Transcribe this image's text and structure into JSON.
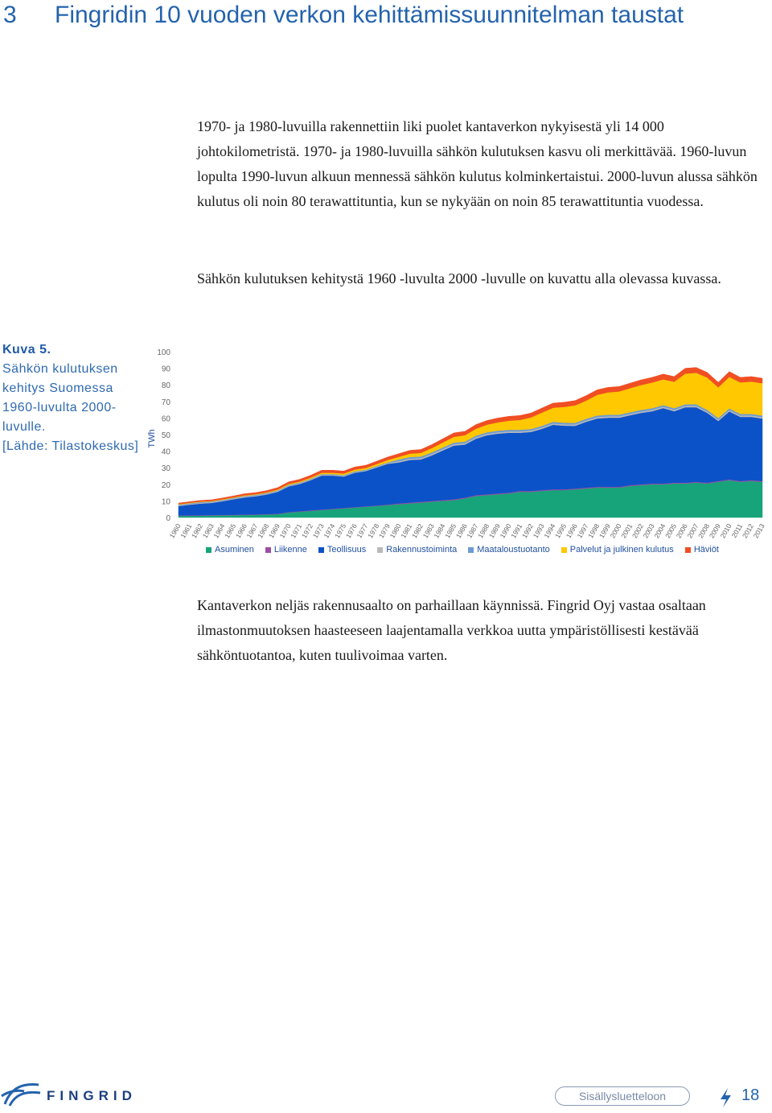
{
  "header": {
    "section": "3",
    "title": "Fingridin 10 vuoden verkon kehittämissuunnitelman taustat"
  },
  "paragraphs": [
    "1970- ja 1980-luvuilla rakennettiin liki puolet kantaverkon nykyisestä yli 14 000 johtokilometristä. 1970- ja 1980-luvuilla sähkön kulutuksen kasvu oli merkittävää. 1960-luvun lopulta 1990-luvun alkuun mennessä sähkön kulutus kolminkertaistui. 2000-luvun alussa sähkön kulutus oli noin 80 terawattituntia, kun se nykyään on noin 85 terawattituntia vuodessa.",
    "Sähkön kulutuksen kehitystä 1960 -luvulta 2000 -luvulle on kuvattu alla olevassa kuvassa.",
    "Kantaverkon neljäs rakennusaalto on parhaillaan käynnissä. Fingrid Oyj vastaa osaltaan ilmastonmuutoksen haasteeseen laajentamalla verkkoa uutta ympäristöllisesti kestävää sähköntuotantoa, kuten tuulivoimaa varten."
  ],
  "figure": {
    "label": "Kuva 5.",
    "caption": "Sähkön kulutuksen kehitys Suomessa 1960-luvulta 2000-luvulle.",
    "source": "[Lähde: Tilastokeskus]"
  },
  "chart_data": {
    "type": "area",
    "stacked": true,
    "ylabel": "TWh",
    "x": [
      1960,
      1961,
      1962,
      1963,
      1964,
      1965,
      1966,
      1967,
      1968,
      1969,
      1970,
      1971,
      1972,
      1973,
      1974,
      1975,
      1976,
      1977,
      1978,
      1979,
      1980,
      1981,
      1982,
      1983,
      1984,
      1985,
      1986,
      1987,
      1988,
      1989,
      1990,
      1991,
      1992,
      1993,
      1994,
      1995,
      1996,
      1997,
      1998,
      1999,
      2000,
      2001,
      2002,
      2003,
      2004,
      2005,
      2006,
      2007,
      2008,
      2009,
      2010,
      2011,
      2012,
      2013
    ],
    "xlim": [
      1960,
      2013
    ],
    "ylim": [
      0,
      100
    ],
    "yticks": [
      0,
      10,
      20,
      30,
      40,
      50,
      60,
      70,
      80,
      90,
      100
    ],
    "grid": false,
    "series": [
      {
        "name": "Asuminen",
        "color": "#17a47b",
        "values": [
          1.0,
          1.0,
          1.1,
          1.2,
          1.3,
          1.4,
          1.5,
          1.6,
          1.8,
          2.0,
          3.0,
          3.5,
          4.0,
          4.5,
          5.0,
          5.5,
          6.0,
          6.5,
          7.0,
          7.5,
          8.0,
          8.5,
          9.0,
          9.5,
          10.0,
          10.5,
          11.5,
          13.0,
          13.5,
          14.0,
          14.5,
          15.5,
          15.5,
          16.0,
          16.5,
          16.5,
          17.0,
          17.5,
          18.0,
          18.0,
          18.0,
          19.0,
          19.5,
          20.0,
          20.0,
          20.5,
          20.5,
          21.0,
          20.5,
          21.5,
          22.5,
          21.5,
          22.0,
          21.5
        ]
      },
      {
        "name": "Liikenne",
        "color": "#9b4fa0",
        "values": [
          0.3,
          0.3,
          0.3,
          0.3,
          0.3,
          0.3,
          0.3,
          0.3,
          0.3,
          0.3,
          0.3,
          0.3,
          0.3,
          0.3,
          0.3,
          0.3,
          0.3,
          0.3,
          0.3,
          0.3,
          0.5,
          0.5,
          0.5,
          0.5,
          0.5,
          0.5,
          0.5,
          0.5,
          0.5,
          0.5,
          0.5,
          0.5,
          0.5,
          0.5,
          0.5,
          0.5,
          0.5,
          0.5,
          0.5,
          0.5,
          0.5,
          0.5,
          0.5,
          0.5,
          0.5,
          0.5,
          0.5,
          0.5,
          0.5,
          0.5,
          0.5,
          0.5,
          0.5,
          0.5
        ]
      },
      {
        "name": "Teollisuus",
        "color": "#0b52c9",
        "values": [
          5.6,
          6.4,
          7.0,
          7.3,
          8.2,
          9.3,
          10.3,
          10.9,
          11.8,
          13.2,
          15.5,
          16.4,
          18.2,
          20.5,
          20.0,
          18.9,
          20.7,
          21.2,
          22.9,
          24.6,
          24.7,
          25.7,
          25.5,
          27.5,
          30.0,
          32.4,
          32.0,
          34.0,
          35.6,
          36.1,
          36.1,
          35.1,
          35.6,
          37.0,
          38.9,
          38.4,
          37.8,
          39.7,
          41.2,
          41.7,
          41.7,
          42.2,
          43.1,
          43.6,
          45.5,
          43.1,
          45.5,
          45.0,
          42.1,
          36.2,
          41.0,
          38.7,
          38.2,
          37.7
        ]
      },
      {
        "name": "Rakennustoiminta",
        "color": "#b9b9b9",
        "values": [
          0.5,
          0.5,
          0.5,
          0.5,
          0.5,
          0.5,
          0.5,
          0.5,
          0.5,
          0.5,
          0.5,
          0.5,
          0.5,
          0.5,
          0.5,
          0.5,
          0.5,
          0.5,
          0.5,
          0.5,
          0.8,
          0.8,
          0.8,
          0.8,
          0.8,
          0.8,
          0.8,
          0.8,
          0.8,
          0.8,
          0.8,
          0.8,
          0.8,
          0.8,
          0.8,
          0.8,
          0.8,
          0.8,
          0.8,
          0.8,
          0.8,
          0.8,
          0.8,
          0.8,
          0.8,
          0.8,
          0.8,
          0.8,
          0.8,
          0.8,
          0.8,
          0.8,
          0.8,
          0.8
        ]
      },
      {
        "name": "Maataloustuotanto",
        "color": "#6d9bd3",
        "values": [
          0.4,
          0.4,
          0.4,
          0.4,
          0.4,
          0.4,
          0.4,
          0.4,
          0.4,
          0.4,
          0.4,
          0.4,
          0.4,
          0.4,
          0.4,
          0.4,
          0.4,
          0.4,
          0.4,
          0.4,
          1.0,
          1.0,
          1.0,
          1.0,
          1.0,
          1.0,
          1.0,
          1.0,
          1.0,
          1.0,
          1.0,
          1.0,
          1.0,
          1.0,
          1.0,
          1.0,
          1.0,
          1.0,
          1.0,
          1.0,
          1.0,
          1.0,
          1.0,
          1.0,
          1.0,
          1.0,
          1.0,
          1.0,
          1.0,
          1.0,
          1.0,
          1.0,
          1.0,
          1.0
        ]
      },
      {
        "name": "Palvelut ja julkinen kulutus",
        "color": "#ffc800",
        "values": [
          0.3,
          0.3,
          0.3,
          0.3,
          0.3,
          0.3,
          0.4,
          0.4,
          0.4,
          0.5,
          0.6,
          0.6,
          0.7,
          0.8,
          0.8,
          0.9,
          1.0,
          1.0,
          1.2,
          1.4,
          1.6,
          2.0,
          2.2,
          2.6,
          3.0,
          3.5,
          3.8,
          4.2,
          4.6,
          5.0,
          5.5,
          6.0,
          7.0,
          8.0,
          8.5,
          9.5,
          10.5,
          11.0,
          12.5,
          13.5,
          14.0,
          14.5,
          15.0,
          15.5,
          15.5,
          16.0,
          18.5,
          19.0,
          19.5,
          18.5,
          19.0,
          19.0,
          19.5,
          19.5
        ]
      },
      {
        "name": "Häviöt",
        "color": "#f04e23",
        "values": [
          0.6,
          0.6,
          0.7,
          0.7,
          0.8,
          0.8,
          0.9,
          0.9,
          1.0,
          1.1,
          1.2,
          1.3,
          1.4,
          1.5,
          1.5,
          1.5,
          1.6,
          1.6,
          1.7,
          1.8,
          1.9,
          2.0,
          2.0,
          2.1,
          2.2,
          2.3,
          2.4,
          2.5,
          2.5,
          2.6,
          2.6,
          2.6,
          2.6,
          2.7,
          2.8,
          2.8,
          2.9,
          3.0,
          3.0,
          3.0,
          3.0,
          3.0,
          3.1,
          3.1,
          3.2,
          3.1,
          3.2,
          3.2,
          3.1,
          3.0,
          3.2,
          3.0,
          3.0,
          3.0
        ]
      }
    ]
  },
  "footer": {
    "logo": "FINGRID",
    "toc_link": "Sisällysluetteloon",
    "page": "18"
  }
}
